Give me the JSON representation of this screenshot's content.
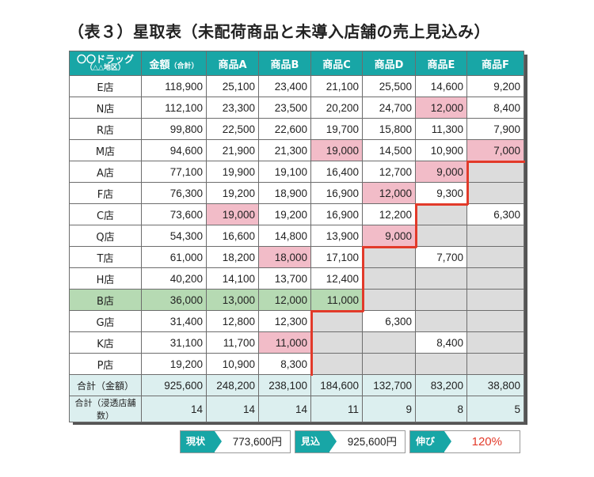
{
  "title": "（表３）星取表（未配荷商品と未導入店舗の売上見込み）",
  "header": {
    "store_line1": "〇〇ドラッグ",
    "store_line2": "（△△地区）",
    "amount": "金額",
    "amount_small": "（合計）",
    "products": [
      "商品A",
      "商品B",
      "商品C",
      "商品D",
      "商品E",
      "商品F"
    ]
  },
  "rows": [
    {
      "store": "E店",
      "total": "118,900",
      "v": [
        "25,100",
        "23,400",
        "21,100",
        "25,500",
        "14,600",
        "9,200"
      ]
    },
    {
      "store": "N店",
      "total": "112,100",
      "v": [
        "23,300",
        "23,500",
        "20,200",
        "24,700",
        "12,000",
        "8,400"
      ]
    },
    {
      "store": "R店",
      "total": "99,800",
      "v": [
        "22,500",
        "22,600",
        "19,700",
        "15,800",
        "11,300",
        "7,900"
      ]
    },
    {
      "store": "M店",
      "total": "94,600",
      "v": [
        "21,900",
        "21,300",
        "19,000",
        "14,500",
        "10,900",
        "7,000"
      ]
    },
    {
      "store": "A店",
      "total": "77,100",
      "v": [
        "19,900",
        "19,100",
        "16,400",
        "12,700",
        "9,000",
        ""
      ]
    },
    {
      "store": "F店",
      "total": "76,300",
      "v": [
        "19,200",
        "18,900",
        "16,900",
        "12,000",
        "9,300",
        ""
      ]
    },
    {
      "store": "C店",
      "total": "73,600",
      "v": [
        "19,000",
        "19,200",
        "16,900",
        "12,200",
        "",
        "6,300"
      ]
    },
    {
      "store": "Q店",
      "total": "54,300",
      "v": [
        "16,600",
        "14,800",
        "13,900",
        "9,000",
        "",
        ""
      ]
    },
    {
      "store": "T店",
      "total": "61,000",
      "v": [
        "18,200",
        "18,000",
        "17,100",
        "",
        "7,700",
        ""
      ]
    },
    {
      "store": "H店",
      "total": "40,200",
      "v": [
        "14,100",
        "13,700",
        "12,400",
        "",
        "",
        ""
      ]
    },
    {
      "store": "B店",
      "total": "36,000",
      "v": [
        "13,000",
        "12,000",
        "11,000",
        "",
        "",
        ""
      ]
    },
    {
      "store": "G店",
      "total": "31,400",
      "v": [
        "12,800",
        "12,300",
        "",
        "6,300",
        "",
        ""
      ]
    },
    {
      "store": "K店",
      "total": "31,100",
      "v": [
        "11,700",
        "11,000",
        "",
        "",
        "8,400",
        ""
      ]
    },
    {
      "store": "P店",
      "total": "19,200",
      "v": [
        "10,900",
        "8,300",
        "",
        "",
        "",
        ""
      ]
    }
  ],
  "sum_row": {
    "label": "合計（金額）",
    "total": "925,600",
    "v": [
      "248,200",
      "238,100",
      "184,600",
      "132,700",
      "83,200",
      "38,800"
    ]
  },
  "count_row": {
    "label": "合計（浸透店舗数）",
    "total": "14",
    "v": [
      "14",
      "14",
      "11",
      "9",
      "8",
      "5"
    ]
  },
  "summary": {
    "current_label": "現状",
    "current_value": "773,600円",
    "forecast_label": "見込",
    "forecast_value": "925,600円",
    "growth_label": "伸び",
    "growth_value": "120%"
  },
  "colors": {
    "header": "#18a6a6",
    "highlight_pink": "#f2bcc8",
    "missing_gray": "#dcdcdc",
    "row_green": "#b6dab3",
    "boundary_red": "#e23a2a"
  }
}
